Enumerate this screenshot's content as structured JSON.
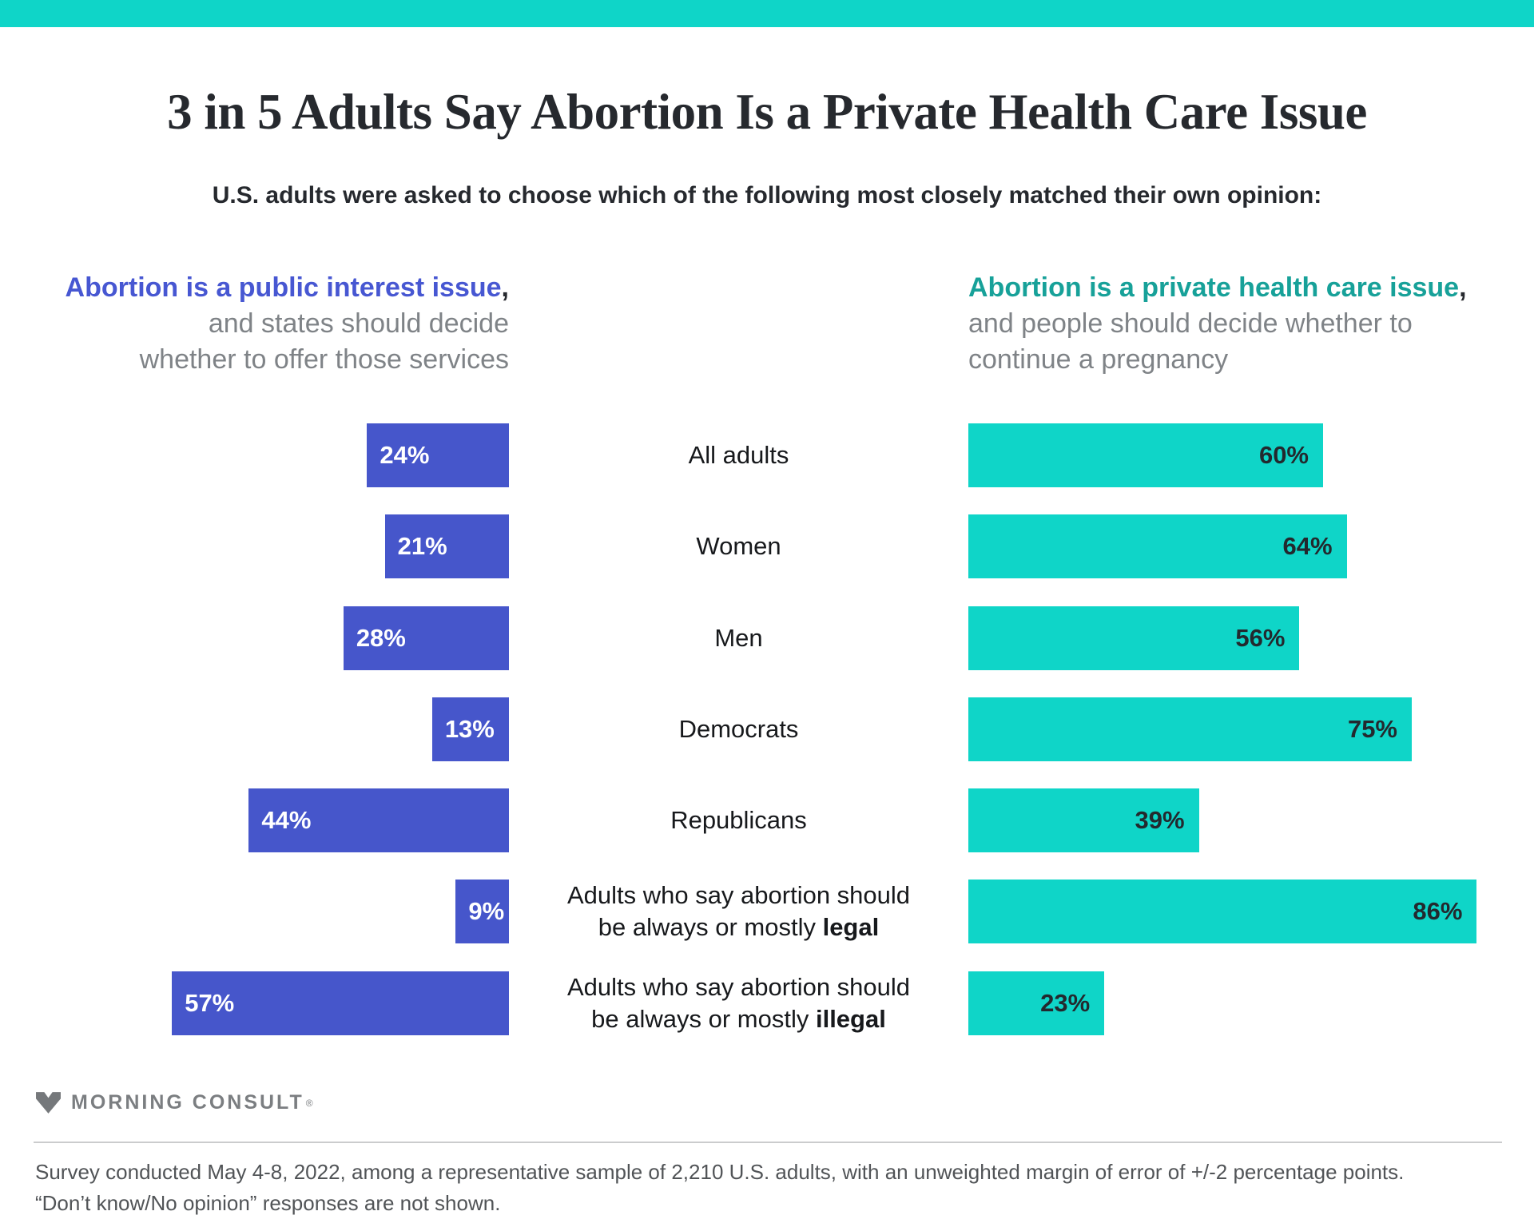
{
  "colors": {
    "teal_bar": "#0fd5c8",
    "blue_bar": "#4656cb",
    "teal_text": "#17a199",
    "blue_text": "#4757d2",
    "gray_text": "#7f8387"
  },
  "header": {
    "title": "3 in 5 Adults Say Abortion Is a Private Health Care Issue",
    "subtitle": "U.S. adults were asked to choose which of the following most closely matched their own opinion:"
  },
  "legend_left": {
    "highlight": "Abortion is a public interest issue",
    "comma": ",",
    "line2": "and states should decide",
    "line3": "whether to offer those services"
  },
  "legend_right": {
    "highlight": "Abortion is a private health care issue",
    "comma": ",",
    "line2": "and people should decide whether to",
    "line3": "continue a pregnancy"
  },
  "rows": [
    {
      "cat1": "All adults",
      "cat2_pre": "",
      "cat2_bold": "",
      "left_value": 24,
      "left_label": "24%",
      "right_value": 60,
      "right_label": "60%"
    },
    {
      "cat1": "Women",
      "cat2_pre": "",
      "cat2_bold": "",
      "left_value": 21,
      "left_label": "21%",
      "right_value": 64,
      "right_label": "64%"
    },
    {
      "cat1": "Men",
      "cat2_pre": "",
      "cat2_bold": "",
      "left_value": 28,
      "left_label": "28%",
      "right_value": 56,
      "right_label": "56%"
    },
    {
      "cat1": "Democrats",
      "cat2_pre": "",
      "cat2_bold": "",
      "left_value": 13,
      "left_label": "13%",
      "right_value": 75,
      "right_label": "75%"
    },
    {
      "cat1": "Republicans",
      "cat2_pre": "",
      "cat2_bold": "",
      "left_value": 44,
      "left_label": "44%",
      "right_value": 39,
      "right_label": "39%"
    },
    {
      "cat1": "Adults who say abortion should",
      "cat2_pre": "be always or mostly ",
      "cat2_bold": "legal",
      "left_value": 9,
      "left_label": "9%",
      "right_value": 86,
      "right_label": "86%"
    },
    {
      "cat1": "Adults who say abortion should",
      "cat2_pre": "be always or mostly ",
      "cat2_bold": "illegal",
      "left_value": 57,
      "left_label": "57%",
      "right_value": 23,
      "right_label": "23%"
    }
  ],
  "footer": {
    "logo_text": "MORNING CONSULT",
    "registered": "®",
    "note_line1": "Survey conducted May 4-8, 2022, among a representative sample of 2,210 U.S. adults, with an unweighted margin of error of +/-2 percentage points.",
    "note_line2": "“Don’t know/No opinion” responses are not shown."
  },
  "chart_data": {
    "type": "bar",
    "orientation": "horizontal-diverging",
    "title": "3 in 5 Adults Say Abortion Is a Private Health Care Issue",
    "subtitle": "U.S. adults were asked to choose which of the following most closely matched their own opinion:",
    "categories": [
      "All adults",
      "Women",
      "Men",
      "Democrats",
      "Republicans",
      "Adults who say abortion should be always or mostly legal",
      "Adults who say abortion should be always or mostly illegal"
    ],
    "series": [
      {
        "name": "Abortion is a public interest issue, and states should decide whether to offer those services",
        "color": "#4656cb",
        "values": [
          24,
          21,
          28,
          13,
          44,
          9,
          57
        ]
      },
      {
        "name": "Abortion is a private health care issue, and people should decide whether to continue a pregnancy",
        "color": "#0fd5c8",
        "values": [
          60,
          64,
          56,
          75,
          39,
          86,
          23
        ]
      }
    ],
    "value_unit": "%",
    "xlim": [
      0,
      100
    ],
    "grid": false,
    "legend_position": "top"
  }
}
